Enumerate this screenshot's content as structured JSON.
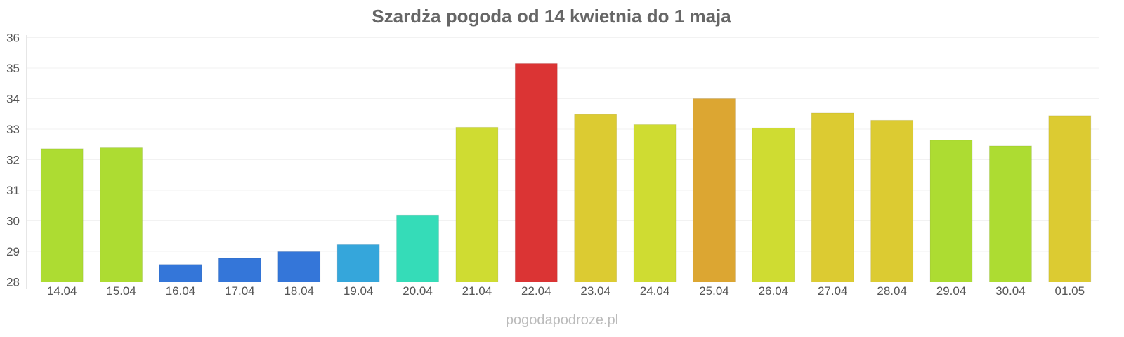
{
  "chart_data": {
    "type": "bar",
    "title": "Szardża pogoda od 14 kwietnia do 1 maja",
    "xlabel": "",
    "ylabel": "",
    "ylim": [
      28,
      36
    ],
    "yticks": [
      "28",
      "29",
      "30",
      "31",
      "32",
      "33",
      "34",
      "35",
      "36"
    ],
    "grid": true,
    "categories": [
      "14.04",
      "15.04",
      "16.04",
      "17.04",
      "18.04",
      "19.04",
      "20.04",
      "21.04",
      "22.04",
      "23.04",
      "24.04",
      "25.04",
      "26.04",
      "27.04",
      "28.04",
      "29.04",
      "30.04",
      "01.05"
    ],
    "values": [
      32.36,
      32.39,
      28.57,
      28.77,
      28.99,
      29.22,
      30.19,
      33.06,
      35.15,
      33.48,
      33.15,
      34.0,
      33.04,
      33.53,
      33.29,
      32.64,
      32.45,
      33.44
    ],
    "colors": [
      "#addc32",
      "#addc32",
      "#3476d9",
      "#3476d9",
      "#3476d9",
      "#35a6db",
      "#35dcb8",
      "#cfdc32",
      "#db3434",
      "#dccb32",
      "#cfdc32",
      "#dca632",
      "#cfdc32",
      "#dccb32",
      "#dccb32",
      "#addc32",
      "#addc32",
      "#dccb32"
    ]
  },
  "footer": {
    "credit": "pogodapodroze.pl"
  }
}
